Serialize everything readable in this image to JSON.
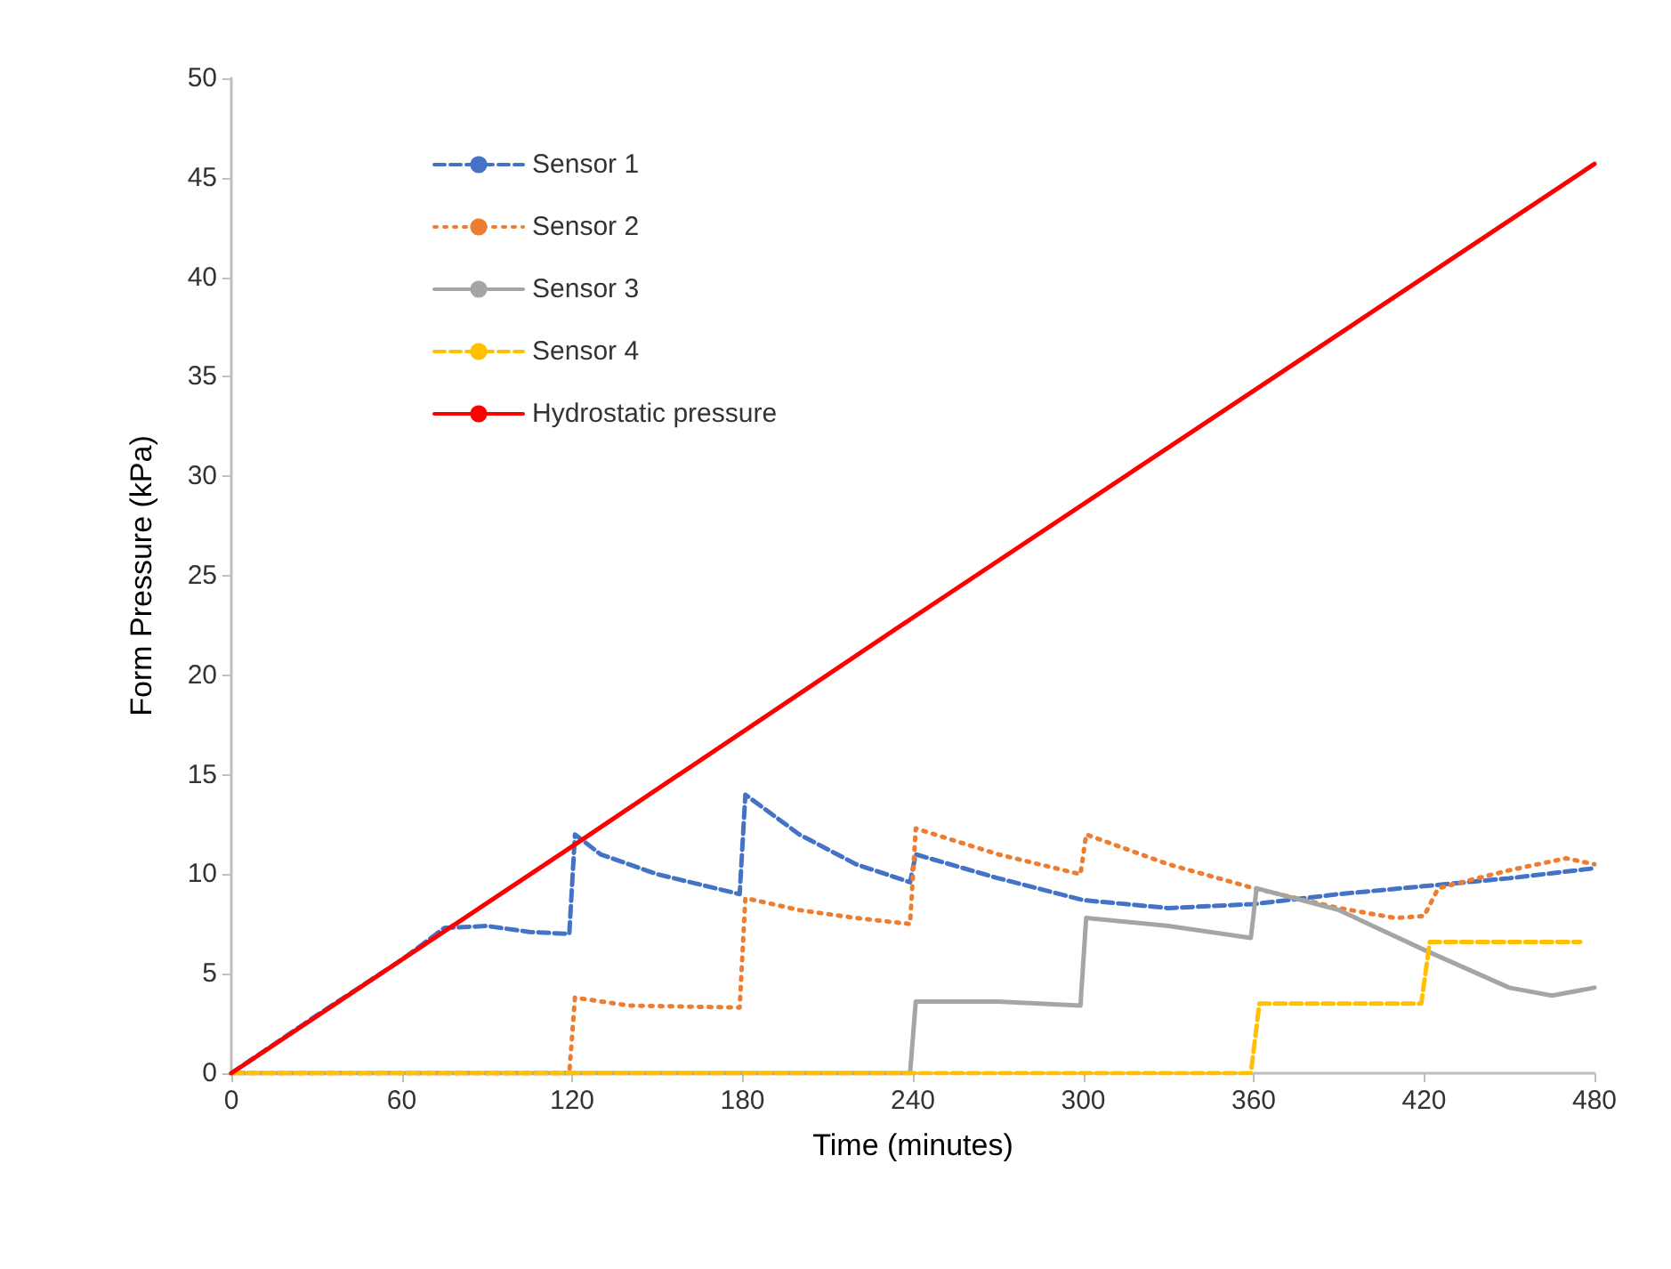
{
  "chart_data": {
    "type": "line",
    "xlabel": "Time (minutes)",
    "ylabel": "Form Pressure (kPa)",
    "xlim": [
      0,
      480
    ],
    "xticks": [
      0,
      60,
      120,
      180,
      240,
      300,
      360,
      420,
      480
    ],
    "ylim": [
      0,
      50
    ],
    "yticks": [
      0,
      5,
      10,
      15,
      20,
      25,
      30,
      35,
      40,
      45,
      50
    ],
    "grid": false,
    "legend": "top left",
    "marker": "none",
    "series": [
      {
        "name": "Sensor 1",
        "color": "#4472c4",
        "line_style": "dashed",
        "x": [
          0,
          30,
          60,
          75,
          90,
          105,
          119,
          121,
          130,
          150,
          179,
          181,
          200,
          220,
          239,
          241,
          270,
          300,
          330,
          360,
          390,
          420,
          450,
          480
        ],
        "values": [
          0,
          2.9,
          5.7,
          7.3,
          7.4,
          7.1,
          7.0,
          12.0,
          11.0,
          10.0,
          9.0,
          14.0,
          12.0,
          10.5,
          9.6,
          11.0,
          9.8,
          8.7,
          8.3,
          8.5,
          9.0,
          9.4,
          9.8,
          10.3
        ]
      },
      {
        "name": "Sensor 2",
        "color": "#ed7d31",
        "line_style": "dotted",
        "x": [
          0,
          119,
          121,
          140,
          179,
          181,
          200,
          220,
          239,
          241,
          270,
          299,
          301,
          330,
          360,
          390,
          410,
          420,
          425,
          450,
          470,
          480
        ],
        "values": [
          0,
          0,
          3.8,
          3.4,
          3.3,
          8.8,
          8.2,
          7.8,
          7.5,
          12.3,
          11.0,
          10.0,
          12.0,
          10.5,
          9.3,
          8.3,
          7.8,
          7.9,
          9.3,
          10.2,
          10.8,
          10.5
        ]
      },
      {
        "name": "Sensor 3",
        "color": "#a5a5a5",
        "line_style": "solid",
        "x": [
          0,
          239,
          241,
          270,
          299,
          301,
          330,
          359,
          361,
          390,
          420,
          450,
          465,
          480
        ],
        "values": [
          0,
          0,
          3.6,
          3.6,
          3.4,
          7.8,
          7.4,
          6.8,
          9.3,
          8.2,
          6.2,
          4.3,
          3.9,
          4.3
        ]
      },
      {
        "name": "Sensor 4",
        "color": "#ffc000",
        "line_style": "dashed",
        "x": [
          0,
          359,
          362,
          419,
          422,
          475
        ],
        "values": [
          0,
          0,
          3.5,
          3.5,
          6.6,
          6.6
        ]
      },
      {
        "name": "Hydrostatic pressure",
        "color": "#ff0000",
        "line_style": "solid",
        "x": [
          0,
          120,
          240,
          360,
          480
        ],
        "values": [
          0,
          11.4,
          22.9,
          34.3,
          45.7
        ]
      }
    ]
  }
}
